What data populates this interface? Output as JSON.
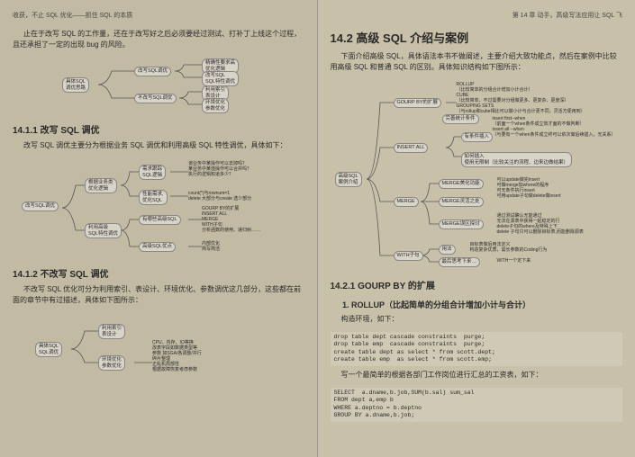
{
  "left": {
    "header": "收获，不止 SQL 优化——抓住 SQL 的本质",
    "intro": "    止在于改写 SQL 的工作量，还在于改写好之后必须要经过测试、打补丁上线这个过程，且还承担了一定的出现 bug 的风险。",
    "d1": {
      "root": "具体SQL\n调优思路",
      "n1": "改写SQL调优",
      "n1a": "精确性要求高\n优化逻辑",
      "n1b": "改写SQL\nSQL特性调优",
      "n2": "不改写SQL调优",
      "n2a": "利用索引\n表设计",
      "n2b": "环境优化\n参数优化"
    },
    "s1411": "14.1.1  改写 SQL 调优",
    "s1411_text": "改写 SQL 调优主要分为根据业务 SQL 调优和利用高级 SQL 特性调优，具体如下：",
    "d2": {
      "root": "改写SQL调优",
      "n1": "根据业务类\n优化逻辑",
      "n1a": "需求跟踪\nSQL逻辑",
      "n1a1": "该业务中某操作可以去掉吗？\n某业务中某值操作可以合并吗？\n执行的逻辑知道多少？",
      "n1b": "性能需求,\n优化SQL",
      "n1b1": "count(*)与rownum=1\ndelete 大部分与create 选少部分",
      "n2": "利用高级\nSQL特性调优",
      "n2a": "有哪些高级SQL",
      "n2a_items": "GOURP BY的扩展\nINSERT ALL\nMERGE\nWITH子句\n分析函数的使用、递归树……",
      "n2b": "高级SQL优点",
      "n2b1": "内部优化\n简写简洁"
    },
    "s1412": "14.1.2  不改写 SQL 调优",
    "s1412_text": "不改写 SQL 优化可分为利用索引、表设计、环境优化、参数调优这几部分，这些都在前面的章节中有过描述，具体如下图所示：",
    "d3": {
      "root": "具体SQL\nSQL调优",
      "n1": "利用索引\n表设计",
      "n2": "环境优化\n参数优化",
      "n2_items": "CPU、内存、IO等换\n改表字段如数据类型等\n参数 如SGA/各调整/并行\n碎片整理\n正乱机局部性\n根据故障恢复考虑参数"
    }
  },
  "right": {
    "header": "第 14 章  动手，高级写法应用让 SQL 飞",
    "s142": "14.2  高级 SQL 介绍与案例",
    "s142_text": "下面介绍高级 SQL，具体语法本书不做阐述，主要介绍大致功能点，然后在案例中比较用高级 SQL 和普通 SQL 的区别。具体知识结构如下图所示：",
    "d4": {
      "root": "高级SQL\n案例介绍",
      "n1": "GOURP BY的扩展",
      "n1_items": "ROLLUP\n（比较简单的分组合计增加小计合计）\nCUBE\n（比较简单，不过需要对分组做更多、更复杂、更度深）\nGROUPING SETS\n（与rollup和cube相比可以做小计与合计更不同，灵活方便用到）",
      "n1_sub": "完善统计条件",
      "n1_sub_items": "insert first--when\n（前面一个when条件成立效才面的不做判断）\ninsert all --when\n（与要有一个when条件成立终可以依次做后续插入，无关系）",
      "n2": "INSERT ALL",
      "n2a": "有条件插入",
      "n2b": "如何插入\n使用无限制（比较关注的流程、边来边做结果）",
      "n3": "MERGE",
      "n3a": "MERGE美化功能",
      "n3b": "MERGE灵活之处",
      "n3b_items": "可以update做完insert\n可做merge加where的程序\n可无条件执行insert\n可用update子句做delete做insert",
      "n3c": "MERGE误区探讨",
      "n3c_items": "通过测试确认无能通过\n无法在源表中获得一起稳定的行\ndelete子句的where及特殊上下\ndelete 子句只可以删除目标表,而能删除源表",
      "n4": "WITH子句",
      "n4a": "用法",
      "n4a_items": "目标表做后用法定义\n构造复杂优质，需长参数的Coding行为",
      "n4b": "最后思考下来…",
      "n4b_items": "WITH一个定下来"
    },
    "s1421": "14.2.1  GOURP BY 的扩展",
    "s1421_sub": "1. ROLLUP（比起简单的分组合计增加小计与合计）",
    "s1421_text": "构造环境，如下：",
    "code1": "drop table dept cascade constraints  purge;\ndrop table emp  cascade constraints  purge;\ncreate table dept as select * from scott.dept;\ncreate table emp  as select * from scott.emp;",
    "s1421_text2": "写一个最简单的根据各部门工作岗位进行汇总的工资表，如下：",
    "code2": "SELECT  a.dname,b.job,SUM(b.sal) sum_sal\nFROM dept a,emp b\nWHERE a.deptno = b.deptno\nGROUP BY a.dname,b.job;"
  }
}
